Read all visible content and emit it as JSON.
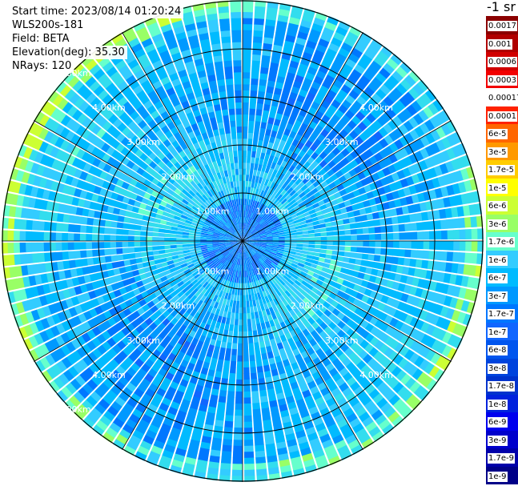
{
  "header": {
    "start_time": "Start time: 2023/08/14 01:20:24",
    "instrument": "WLS200s-181",
    "field": "Field: BETA",
    "elevation": "Elevation(deg): 35.30",
    "nrays": "NRays: 120"
  },
  "colorbar": {
    "unit_label": "-1 sr",
    "labels": [
      "0.0017",
      "0.001",
      "0.0006",
      "0.0003",
      "0.00017",
      "0.0001",
      "6e-5",
      "3e-5",
      "1.7e-5",
      "1e-5",
      "6e-6",
      "3e-6",
      "1.7e-6",
      "1e-6",
      "6e-7",
      "3e-7",
      "1.7e-7",
      "1e-7",
      "6e-8",
      "3e-8",
      "1.7e-8",
      "1e-8",
      "6e-9",
      "3e-9",
      "1.7e-9",
      "1e-9"
    ],
    "colors": [
      "#8b0000",
      "#b00000",
      "#d10000",
      "#f20000",
      "#ffffff",
      "#ff2200",
      "#ff6600",
      "#ff9900",
      "#ffcc00",
      "#ffff00",
      "#ccff33",
      "#99ff66",
      "#66ffcc",
      "#33ccff",
      "#00bbff",
      "#0099ff",
      "#0077ff",
      "#1166ff",
      "#0055ee",
      "#0044dd",
      "#0033cc",
      "#0022dd",
      "#0000ee",
      "#0000cc",
      "#0000aa",
      "#000088"
    ]
  },
  "chart_data": {
    "type": "heatmap",
    "projection": "polar",
    "field": "BETA",
    "nrays": 120,
    "max_range_km": 5.0,
    "range_rings_km": [
      1.0,
      2.0,
      3.0,
      4.0,
      5.0
    ],
    "ring_labels": [
      "1.00km",
      "2.00km",
      "3.00km",
      "4.00km",
      "5.00km"
    ],
    "spoke_step_deg": 30,
    "value_range": [
      1e-09,
      0.0017
    ],
    "value_scale": "log",
    "dominant_value_band": "1.7e-6",
    "grid": true
  }
}
